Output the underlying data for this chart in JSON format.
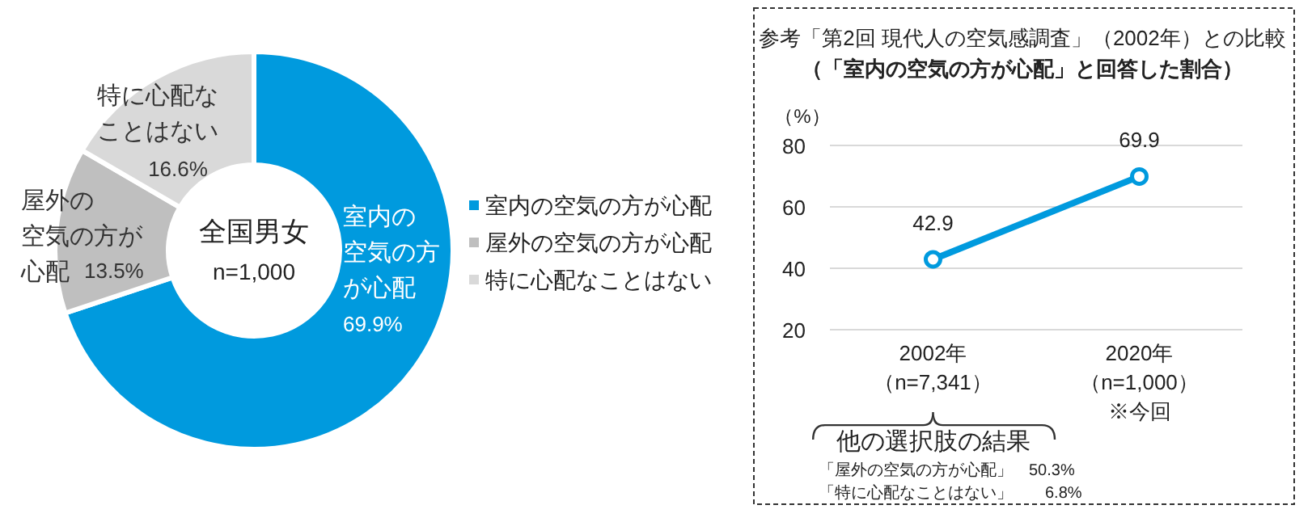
{
  "chart_data": [
    {
      "type": "donut",
      "categories": [
        "室内の空気の方が心配",
        "屋外の空気の方が心配",
        "特に心配なことはない"
      ],
      "values": [
        69.9,
        13.5,
        16.6
      ],
      "colors": [
        "#009ade",
        "#bfbfbf",
        "#d9d9d9"
      ],
      "value_labels": [
        "69.9%",
        "13.5%",
        "16.6%"
      ],
      "legend": "right",
      "annotations": [
        "全国男女",
        "n=1,000",
        "室内の",
        "空気の方",
        "が心配",
        "屋外の",
        "空気の方が",
        "心配",
        "特に心配な",
        "ことはない"
      ]
    },
    {
      "type": "line",
      "title": "参考「第2回  現代人の空気感調査」（2002年）との比較",
      "subtitle": "（「室内の空気の方が心配」と回答した割合）",
      "ylabel": "（%）",
      "categories": [
        "2002年（n=7,341）",
        "2020年（n=1,000）※今回"
      ],
      "series": [
        {
          "color": "#009ade",
          "values": [
            42.9,
            69.9
          ]
        }
      ],
      "ylim": [
        20,
        80
      ],
      "yticks": [
        20,
        40,
        60,
        80
      ],
      "grid": "y",
      "marker": "circle",
      "line_style": "solid",
      "data_labels": true,
      "annotations": [
        "他の選択肢の結果",
        "「屋外の空気の方が心配」　50.3%",
        "「特に心配なことはない」　　6.8%"
      ]
    }
  ]
}
